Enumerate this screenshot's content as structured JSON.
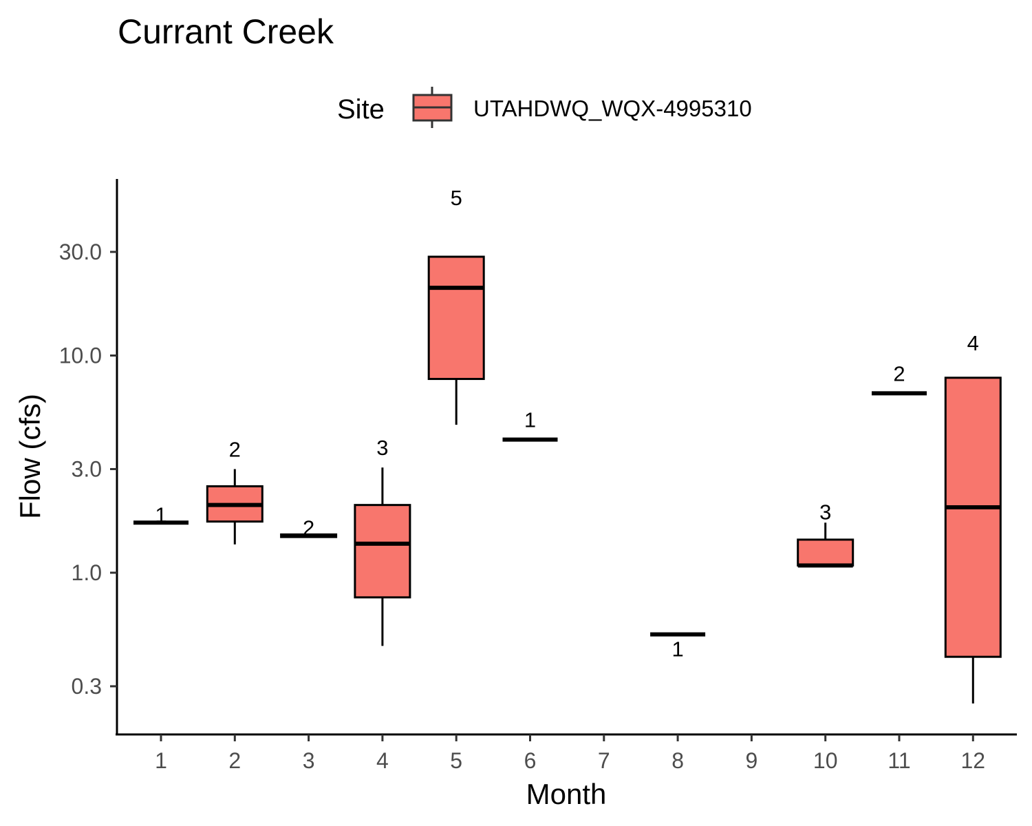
{
  "chart_data": {
    "type": "boxplot",
    "title": "Currant Creek",
    "xlabel": "Month",
    "ylabel": "Flow (cfs)",
    "y_scale": "log10",
    "ylim": [
      0.18,
      65
    ],
    "y_ticks": [
      0.3,
      1.0,
      3.0,
      10.0,
      30.0
    ],
    "y_tick_labels": [
      "0.3",
      "1.0",
      "3.0",
      "10.0",
      "30.0"
    ],
    "categories": [
      "1",
      "2",
      "3",
      "4",
      "5",
      "6",
      "7",
      "8",
      "9",
      "10",
      "11",
      "12"
    ],
    "legend": {
      "title": "Site",
      "entries": [
        "UTAHDWQ_WQX-4995310"
      ],
      "placement": "top"
    },
    "fill_color": "#F8766D",
    "series": [
      {
        "name": "UTAHDWQ_WQX-4995310",
        "boxes": [
          {
            "month": "1",
            "min": 1.7,
            "q1": 1.7,
            "median": 1.7,
            "q3": 1.7,
            "max": 1.7,
            "n": 1,
            "label": "1"
          },
          {
            "month": "2",
            "min": 1.35,
            "q1": 1.72,
            "median": 2.05,
            "q3": 2.5,
            "max": 3.0,
            "n": 2,
            "label": "2"
          },
          {
            "month": "3",
            "min": 1.46,
            "q1": 1.46,
            "median": 1.48,
            "q3": 1.5,
            "max": 1.5,
            "n": 2,
            "label": "2"
          },
          {
            "month": "4",
            "min": 0.46,
            "q1": 0.77,
            "median": 1.36,
            "q3": 2.05,
            "max": 3.05,
            "n": 3,
            "label": "3"
          },
          {
            "month": "5",
            "min": 4.8,
            "q1": 7.8,
            "median": 20.5,
            "q3": 28.5,
            "max": 28.5,
            "n": 5,
            "label": "5"
          },
          {
            "month": "6",
            "min": 4.1,
            "q1": 4.1,
            "median": 4.1,
            "q3": 4.1,
            "max": 4.1,
            "n": 1,
            "label": "1"
          },
          {
            "month": "8",
            "min": 0.52,
            "q1": 0.52,
            "median": 0.52,
            "q3": 0.52,
            "max": 0.52,
            "n": 1,
            "label": "1"
          },
          {
            "month": "10",
            "min": 1.08,
            "q1": 1.08,
            "median": 1.08,
            "q3": 1.42,
            "max": 1.7,
            "n": 3,
            "label": "3"
          },
          {
            "month": "11",
            "min": 6.7,
            "q1": 6.7,
            "median": 6.7,
            "q3": 6.7,
            "max": 6.7,
            "n": 2,
            "label": "2"
          },
          {
            "month": "12",
            "min": 0.25,
            "q1": 0.41,
            "median": 2.0,
            "q3": 7.9,
            "max": 7.9,
            "n": 4,
            "label": "4"
          }
        ]
      }
    ]
  }
}
